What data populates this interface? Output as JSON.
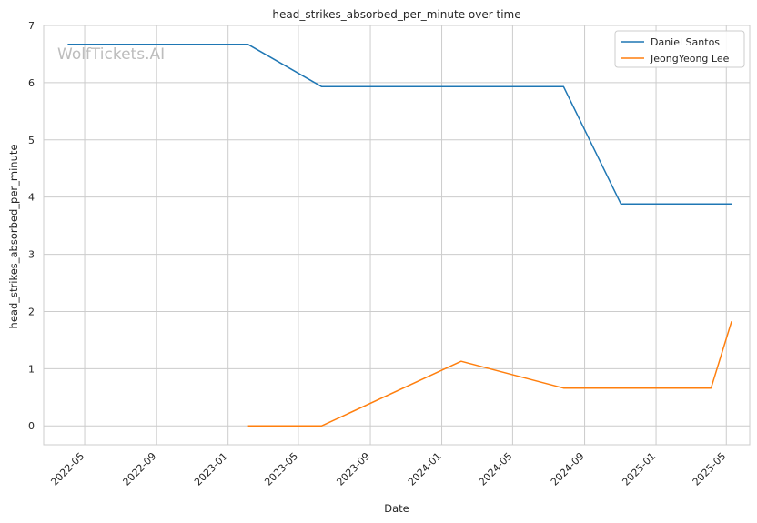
{
  "watermark": "WolfTickets.AI",
  "chart_data": {
    "type": "line",
    "title": "head_strikes_absorbed_per_minute over time",
    "xlabel": "Date",
    "ylabel": "head_strikes_absorbed_per_minute",
    "x_ticks": [
      "2022-05",
      "2022-09",
      "2023-01",
      "2023-05",
      "2023-09",
      "2024-01",
      "2024-05",
      "2024-09",
      "2025-01",
      "2025-05"
    ],
    "y_ticks": [
      0,
      1,
      2,
      3,
      4,
      5,
      6,
      7
    ],
    "xlim": [
      "2022-02-20",
      "2025-06-10"
    ],
    "ylim": [
      -0.33,
      7
    ],
    "grid": true,
    "legend_position": "top-right",
    "series": [
      {
        "name": "Daniel Santos",
        "color": "#1f77b4",
        "points": [
          {
            "x": "2022-04-02",
            "y": 6.67
          },
          {
            "x": "2023-02-04",
            "y": 6.67
          },
          {
            "x": "2023-06-10",
            "y": 5.93
          },
          {
            "x": "2024-07-27",
            "y": 5.93
          },
          {
            "x": "2024-11-02",
            "y": 3.88
          },
          {
            "x": "2025-05-10",
            "y": 3.88
          }
        ]
      },
      {
        "name": "JeongYeong Lee",
        "color": "#ff7f0e",
        "points": [
          {
            "x": "2023-02-04",
            "y": 0.0
          },
          {
            "x": "2023-06-10",
            "y": 0.0
          },
          {
            "x": "2024-02-03",
            "y": 1.13
          },
          {
            "x": "2024-07-27",
            "y": 0.66
          },
          {
            "x": "2025-04-05",
            "y": 0.66
          },
          {
            "x": "2025-05-10",
            "y": 1.83
          }
        ]
      }
    ]
  }
}
